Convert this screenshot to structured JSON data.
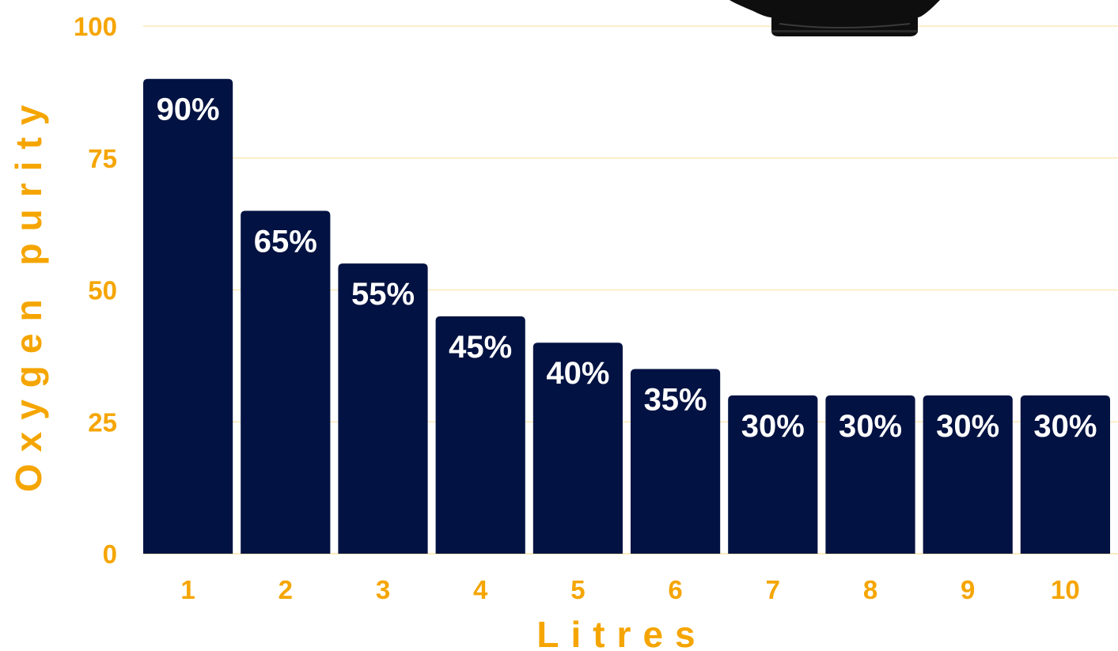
{
  "colors": {
    "bar": "#021242",
    "axis_text": "#F5A500",
    "grid": "#FCE8B8",
    "label": "#ffffff"
  },
  "chart_data": {
    "type": "bar",
    "categories": [
      "1",
      "2",
      "3",
      "4",
      "5",
      "6",
      "7",
      "8",
      "9",
      "10"
    ],
    "values": [
      90,
      65,
      55,
      45,
      40,
      35,
      30,
      30,
      30,
      30
    ],
    "data_labels": [
      "90%",
      "65%",
      "55%",
      "45%",
      "40%",
      "35%",
      "30%",
      "30%",
      "30%",
      "30%"
    ],
    "title": "",
    "xlabel": "Litres",
    "ylabel": "Oxygen purity",
    "ylim": [
      0,
      100
    ],
    "yticks": [
      0,
      25,
      50,
      75,
      100
    ],
    "grid": true,
    "legend": "none"
  }
}
